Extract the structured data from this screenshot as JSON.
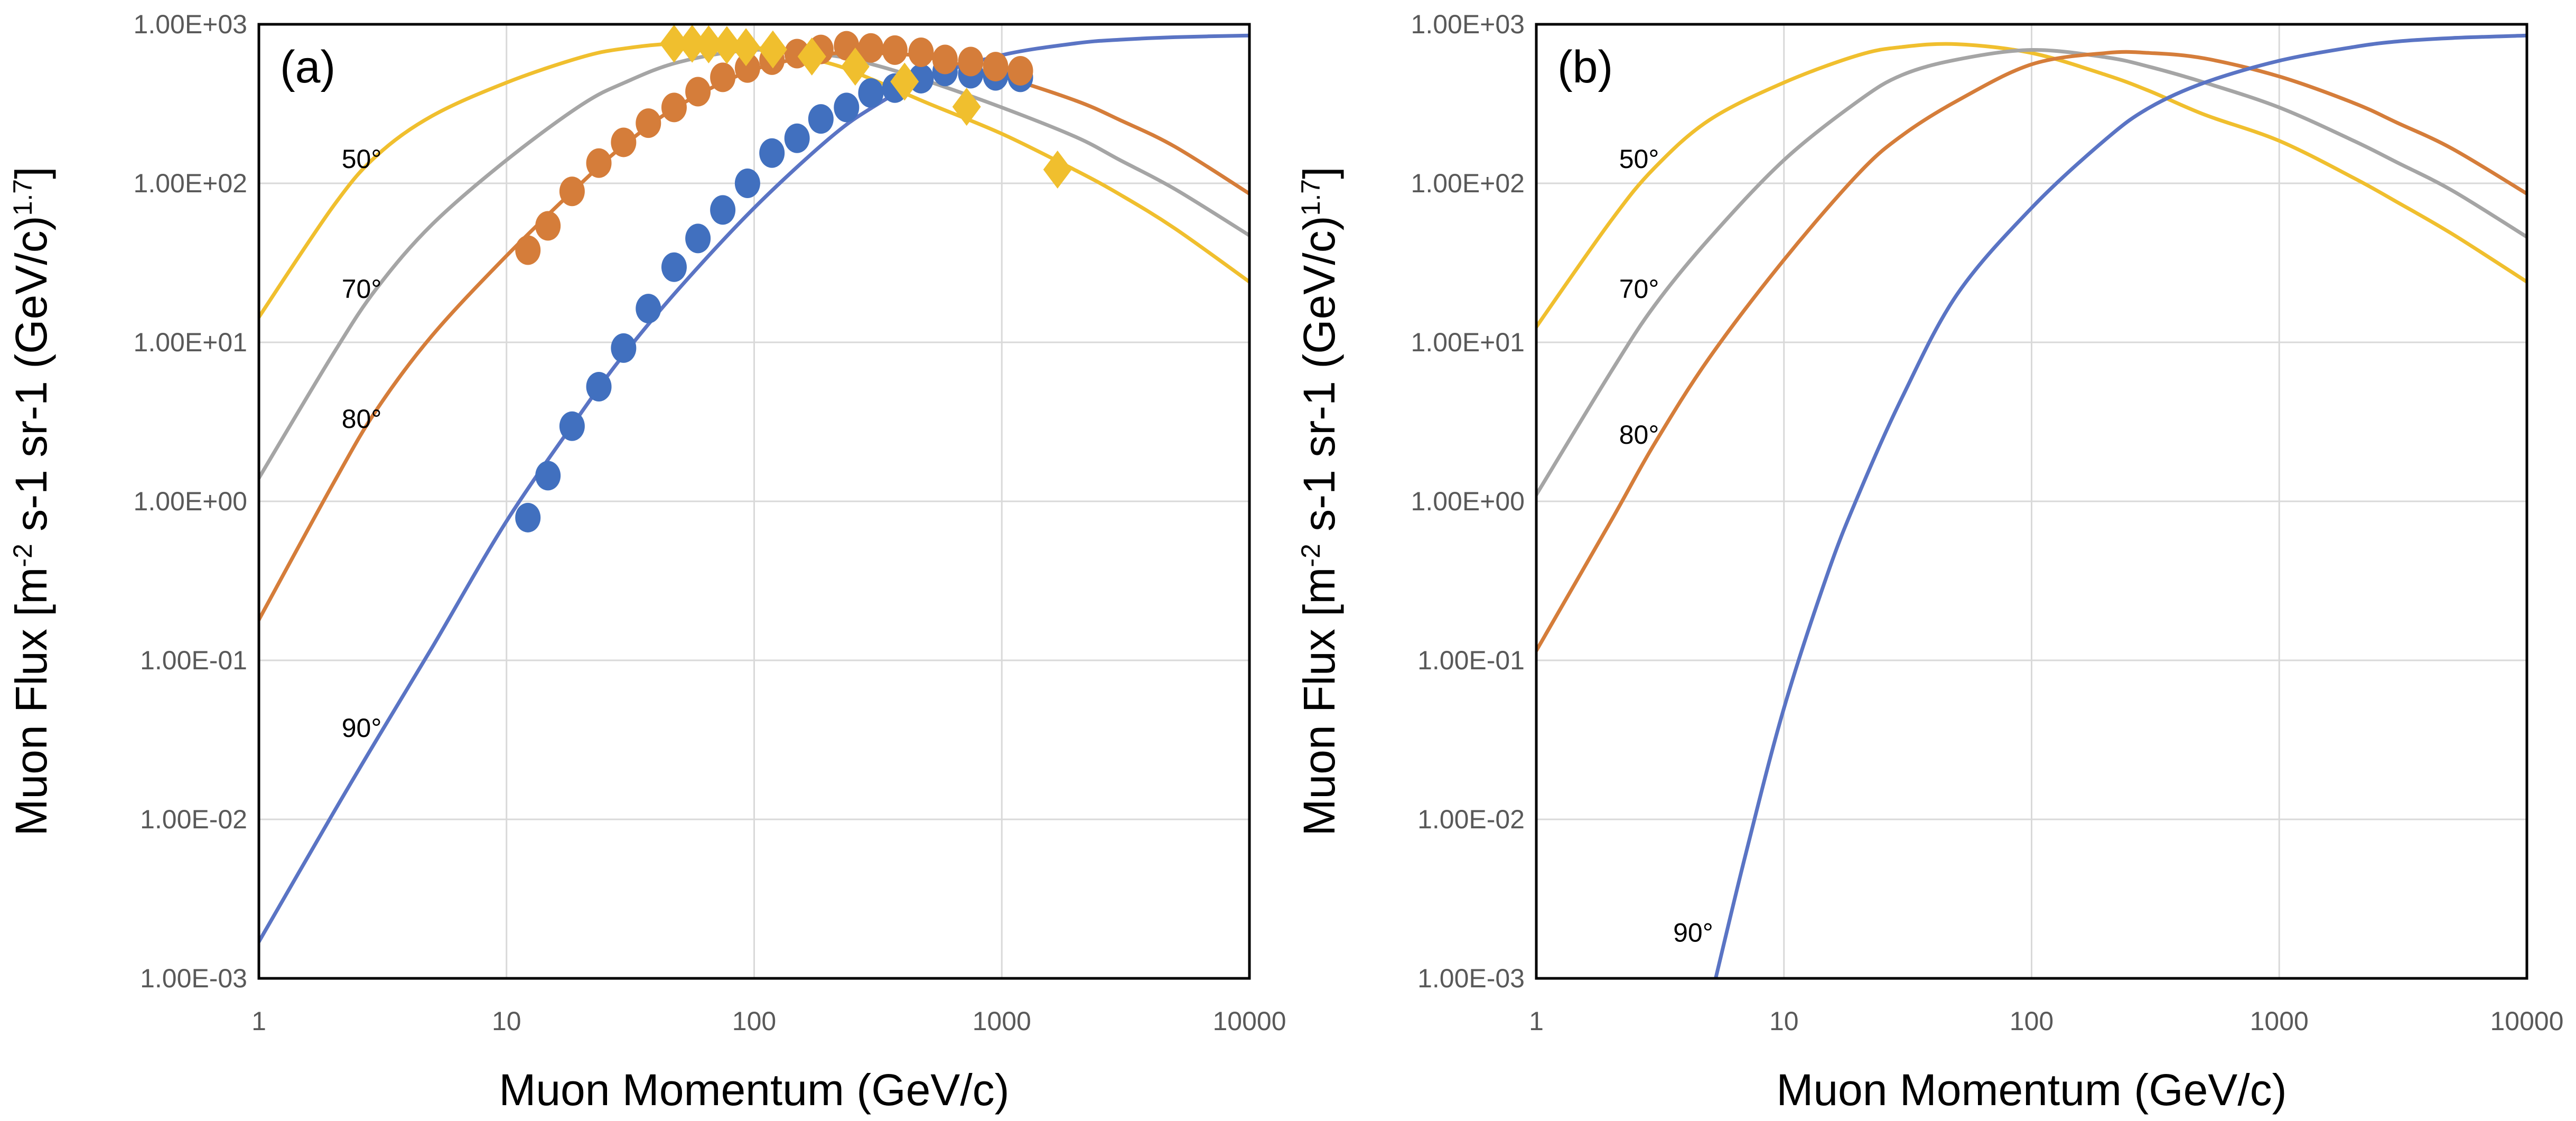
{
  "chart_data": [
    {
      "panel_label": "(a)",
      "type": "scatter",
      "title": "",
      "xlabel": "Muon Momentum (GeV/c)",
      "ylabel_main": "Muon Flux [m",
      "ylabel_sup1": "-2",
      "ylabel_mid": " s-1 sr-1 (GeV/c)",
      "ylabel_sup2": "1.7",
      "ylabel_end": "]",
      "xscale": "log",
      "yscale": "log",
      "xlim": [
        1,
        10000
      ],
      "ylim": [
        0.001,
        1000
      ],
      "x_ticks": [
        "1",
        "10",
        "100",
        "1000",
        "10000"
      ],
      "y_ticks": [
        "1.00E-03",
        "1.00E-02",
        "1.00E-01",
        "1.00E+00",
        "1.00E+01",
        "1.00E+02",
        "1.00E+03"
      ],
      "grid": true,
      "curve_labels": [
        {
          "text": "50°",
          "series": "50°",
          "at": [
            2.6,
            125
          ]
        },
        {
          "text": "70°",
          "series": "70°",
          "at": [
            2.6,
            19
          ]
        },
        {
          "text": "80°",
          "series": "80°",
          "at": [
            2.6,
            2.9
          ]
        },
        {
          "text": "90°",
          "series": "90°",
          "at": [
            2.6,
            0.033
          ]
        }
      ],
      "lines": [
        {
          "name": "50°",
          "color": "#f0bf2e",
          "x": [
            1,
            2,
            3,
            5,
            10,
            20,
            30,
            50,
            100,
            200,
            300,
            500,
            1000,
            2000,
            3000,
            5000,
            10000
          ],
          "y": [
            14.4,
            72,
            150,
            265,
            430,
            620,
            705,
            755,
            715,
            570,
            450,
            320,
            205,
            120,
            85,
            52,
            24
          ]
        },
        {
          "name": "70°",
          "color": "#a5a5a5",
          "x": [
            1,
            2,
            3,
            5,
            10,
            20,
            30,
            50,
            100,
            200,
            300,
            500,
            1000,
            2000,
            3000,
            5000,
            10000
          ],
          "y": [
            1.4,
            8.5,
            22,
            55,
            140,
            310,
            430,
            580,
            690,
            640,
            560,
            440,
            300,
            195,
            140,
            92,
            47
          ]
        },
        {
          "name": "80°",
          "color": "#d57d3a",
          "x": [
            1,
            2,
            3,
            5,
            10,
            20,
            30,
            50,
            100,
            200,
            300,
            500,
            1000,
            2000,
            3000,
            5000,
            10000
          ],
          "y": [
            0.18,
            1.3,
            3.8,
            11,
            35,
            100,
            175,
            310,
            520,
            650,
            660,
            620,
            470,
            330,
            250,
            170,
            86
          ]
        },
        {
          "name": "90°",
          "color": "#5a74c4",
          "x": [
            1,
            2,
            3,
            5,
            10,
            20,
            30,
            50,
            100,
            200,
            300,
            500,
            1000,
            2000,
            3000,
            5000,
            10000
          ],
          "y": [
            0.0017,
            0.011,
            0.032,
            0.12,
            0.75,
            3.6,
            8.5,
            22,
            70,
            190,
            300,
            460,
            640,
            760,
            800,
            830,
            850
          ]
        }
      ],
      "series": [
        {
          "name": "90° data",
          "marker": "circle",
          "color": "#4170bf",
          "x": [
            12.2,
            14.7,
            18.4,
            23.6,
            29.7,
            37.4,
            47.5,
            59.3,
            74.7,
            94,
            118,
            149,
            186,
            236,
            296,
            370,
            472,
            590,
            749,
            944,
            1189
          ],
          "y": [
            0.79,
            1.45,
            2.97,
            5.26,
            9.2,
            16.3,
            29.7,
            45,
            68,
            100,
            155,
            192,
            254,
            300,
            370,
            397,
            455,
            505,
            489,
            474,
            464
          ]
        },
        {
          "name": "80° data",
          "marker": "circle",
          "color": "#d57d3a",
          "x": [
            12.2,
            14.7,
            18.4,
            23.6,
            29.7,
            37.4,
            47.5,
            59.3,
            74.7,
            94,
            118,
            149,
            186,
            236,
            296,
            370,
            472,
            590,
            749,
            944,
            1189
          ],
          "y": [
            38,
            54,
            89,
            134,
            181,
            239,
            300,
            377,
            464,
            531,
            595,
            654,
            695,
            733,
            710,
            688,
            667,
            601,
            583,
            542,
            510
          ]
        },
        {
          "name": "50° data",
          "marker": "diamond",
          "color": "#f0bf2e",
          "x": [
            47.5,
            56.2,
            65.5,
            77.6,
            92.7,
            119,
            171,
            256,
            405,
            721,
            1679
          ],
          "y": [
            755,
            755,
            748,
            740,
            718,
            695,
            627,
            542,
            436,
            303,
            122
          ]
        }
      ]
    },
    {
      "panel_label": "(b)",
      "type": "line",
      "title": "",
      "xlabel": "Muon Momentum (GeV/c)",
      "ylabel_main": "Muon Flux [m",
      "ylabel_sup1": "-2",
      "ylabel_mid": " s-1 sr-1 (GeV/c)",
      "ylabel_sup2": "1.7",
      "ylabel_end": "]",
      "xscale": "log",
      "yscale": "log",
      "xlim": [
        1,
        10000
      ],
      "ylim": [
        0.001,
        1000
      ],
      "x_ticks": [
        "1",
        "10",
        "100",
        "1000",
        "10000"
      ],
      "y_ticks": [
        "1.00E-03",
        "1.00E-02",
        "1.00E-01",
        "1.00E+00",
        "1.00E+01",
        "1.00E+02",
        "1.00E+03"
      ],
      "grid": true,
      "curve_labels": [
        {
          "text": "50°",
          "series": "50°",
          "at": [
            2.6,
            125
          ]
        },
        {
          "text": "70°",
          "series": "70°",
          "at": [
            2.6,
            19
          ]
        },
        {
          "text": "80°",
          "series": "80°",
          "at": [
            2.6,
            2.3
          ]
        },
        {
          "text": "90°",
          "series": "90°",
          "at": [
            4.3,
            0.0017
          ]
        }
      ],
      "lines": [
        {
          "name": "50°",
          "color": "#f0bf2e",
          "x": [
            1,
            2,
            3,
            5,
            10,
            20,
            30,
            50,
            100,
            200,
            300,
            500,
            1000,
            2000,
            3000,
            5000,
            10000
          ],
          "y": [
            12.5,
            58,
            125,
            250,
            430,
            640,
            720,
            750,
            660,
            480,
            380,
            270,
            185,
            108,
            76,
            48,
            24
          ]
        },
        {
          "name": "70°",
          "color": "#a5a5a5",
          "x": [
            1,
            2,
            3,
            5,
            10,
            20,
            30,
            50,
            100,
            200,
            300,
            500,
            1000,
            2000,
            3000,
            5000,
            10000
          ],
          "y": [
            1.1,
            6.5,
            17,
            45,
            140,
            330,
            480,
            600,
            690,
            620,
            540,
            430,
            300,
            185,
            135,
            90,
            46
          ]
        },
        {
          "name": "80°",
          "color": "#d57d3a",
          "x": [
            1,
            2,
            3,
            5,
            10,
            20,
            30,
            50,
            100,
            200,
            300,
            500,
            1000,
            2000,
            3000,
            5000,
            10000
          ],
          "y": [
            0.115,
            0.75,
            2.3,
            8,
            33,
            115,
            200,
            330,
            560,
            660,
            660,
            610,
            470,
            320,
            240,
            165,
            86
          ]
        },
        {
          "name": "90°",
          "color": "#5a74c4",
          "x": [
            5.3,
            7,
            10,
            15,
            20,
            30,
            50,
            100,
            200,
            300,
            500,
            1000,
            2000,
            3000,
            5000,
            10000
          ],
          "y": [
            0.001,
            0.006,
            0.05,
            0.35,
            1.1,
            4.5,
            20,
            70,
            190,
            300,
            430,
            590,
            720,
            780,
            820,
            850
          ]
        }
      ],
      "series": []
    }
  ]
}
